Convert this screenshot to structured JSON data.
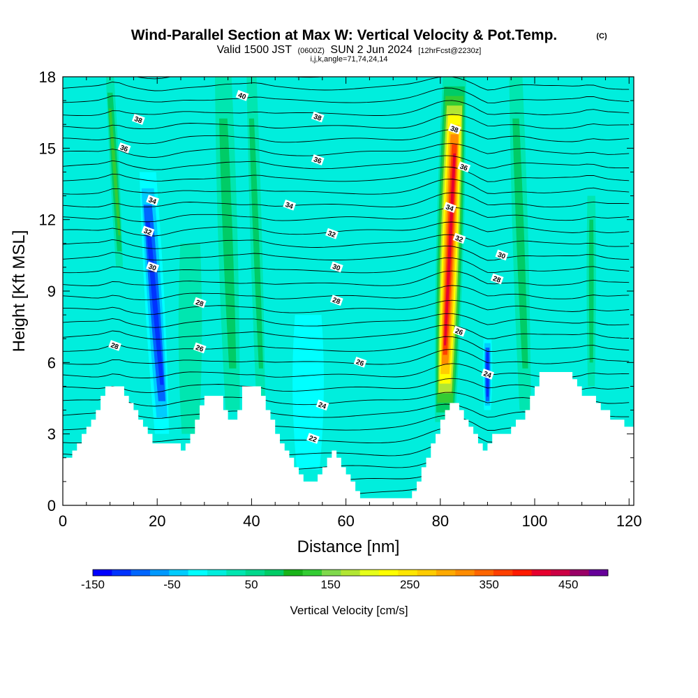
{
  "title": {
    "main": "Wind-Parallel Section at Max W: Vertical Velocity & Pot.Temp.",
    "copyright": "(C)",
    "valid_prefix": "Valid 1500 JST",
    "valid_utc": "(0600Z)",
    "valid_date": "SUN 2 Jun 2024",
    "forecast": "[12hrFcst@2230z]",
    "indices": "i,j,k,angle=71,74,24,14"
  },
  "chart_data": {
    "type": "heatmap",
    "xlabel": "Distance [nm]",
    "ylabel": "Height [Kft MSL]",
    "xlim": [
      0,
      121
    ],
    "ylim": [
      0,
      18
    ],
    "xticks": [
      "0",
      "20",
      "40",
      "60",
      "80",
      "100",
      "120"
    ],
    "yticks": [
      "0",
      "3",
      "6",
      "9",
      "12",
      "15",
      "18"
    ],
    "colorbar": {
      "label": "Vertical Velocity [cm/s]",
      "min": -150,
      "max": 500,
      "step": 25,
      "tick_labels": [
        "-150",
        "-50",
        "50",
        "150",
        "250",
        "350",
        "450"
      ],
      "colors": [
        "#0000ff",
        "#0033ff",
        "#0066ff",
        "#0099ff",
        "#00ccff",
        "#00ffff",
        "#00eedd",
        "#00e6b0",
        "#00d98c",
        "#00cc66",
        "#19b319",
        "#33cc33",
        "#7fd94c",
        "#b2e633",
        "#e6ff1a",
        "#ffff00",
        "#ffe600",
        "#ffcc00",
        "#ffaa00",
        "#ff8c00",
        "#ff6600",
        "#ff4000",
        "#ff1a00",
        "#e6002e",
        "#cc0044",
        "#990066",
        "#660099"
      ]
    },
    "terrain_kft": [
      [
        0,
        2
      ],
      [
        2,
        2.3
      ],
      [
        3,
        2.6
      ],
      [
        4,
        3
      ],
      [
        5,
        3.3
      ],
      [
        6,
        3.6
      ],
      [
        7,
        4
      ],
      [
        8,
        4.6
      ],
      [
        9,
        5
      ],
      [
        12,
        5
      ],
      [
        13,
        4.6
      ],
      [
        14,
        4.3
      ],
      [
        15,
        4
      ],
      [
        16,
        3.6
      ],
      [
        17,
        3.3
      ],
      [
        18,
        3
      ],
      [
        19,
        2.6
      ],
      [
        24,
        2.6
      ],
      [
        25,
        2.3
      ],
      [
        26,
        2.6
      ],
      [
        27,
        3
      ],
      [
        28,
        3.6
      ],
      [
        29,
        4.2
      ],
      [
        30,
        4.6
      ],
      [
        33,
        4.6
      ],
      [
        34,
        4
      ],
      [
        35,
        3.6
      ],
      [
        36,
        3.6
      ],
      [
        37,
        4
      ],
      [
        38,
        5
      ],
      [
        41,
        5
      ],
      [
        42,
        4.6
      ],
      [
        43,
        4
      ],
      [
        44,
        3.6
      ],
      [
        45,
        3
      ],
      [
        46,
        2.6
      ],
      [
        47,
        2.3
      ],
      [
        48,
        2
      ],
      [
        49,
        1.6
      ],
      [
        50,
        1.3
      ],
      [
        51,
        1
      ],
      [
        53,
        1
      ],
      [
        54,
        1.3
      ],
      [
        55,
        1.6
      ],
      [
        56,
        2
      ],
      [
        57,
        2.3
      ],
      [
        58,
        2
      ],
      [
        59,
        1.6
      ],
      [
        60,
        1.3
      ],
      [
        61,
        1
      ],
      [
        62,
        0.6
      ],
      [
        63,
        0.3
      ],
      [
        73,
        0.3
      ],
      [
        74,
        0.6
      ],
      [
        75,
        1
      ],
      [
        76,
        1.6
      ],
      [
        77,
        2
      ],
      [
        78,
        2.6
      ],
      [
        79,
        3
      ],
      [
        80,
        3.6
      ],
      [
        81,
        4
      ],
      [
        82,
        4.3
      ],
      [
        83,
        4.3
      ],
      [
        84,
        4
      ],
      [
        85,
        3.6
      ],
      [
        86,
        3.3
      ],
      [
        87,
        3
      ],
      [
        88,
        2.6
      ],
      [
        89,
        2.3
      ],
      [
        90,
        2.6
      ],
      [
        91,
        3
      ],
      [
        94,
        3
      ],
      [
        95,
        3.3
      ],
      [
        96,
        3.6
      ],
      [
        97,
        3.6
      ],
      [
        98,
        4
      ],
      [
        99,
        4.6
      ],
      [
        100,
        5
      ],
      [
        101,
        5.6
      ],
      [
        107,
        5.6
      ],
      [
        108,
        5.3
      ],
      [
        109,
        5
      ],
      [
        110,
        4.6
      ],
      [
        111,
        4.6
      ],
      [
        112,
        4.6
      ],
      [
        113,
        4.3
      ],
      [
        114,
        4
      ],
      [
        116,
        3.6
      ],
      [
        118,
        3.6
      ],
      [
        119,
        3.3
      ],
      [
        121,
        3.3
      ]
    ],
    "series": [
      {
        "name": "updraft-82nm",
        "x_top": 83,
        "x_bottom": 81,
        "y_from": 3.5,
        "y_to": 18,
        "w": 480,
        "width_nm": 3.5
      },
      {
        "name": "updraft-11nm",
        "x_top": 10,
        "x_bottom": 12,
        "y_from": 10,
        "y_to": 18,
        "w": 160,
        "width_nm": 1.2
      },
      {
        "name": "updraft-36nm",
        "x_top": 34,
        "x_bottom": 36,
        "y_from": 4,
        "y_to": 18,
        "w": 110,
        "width_nm": 2.5
      },
      {
        "name": "updraft-42nm",
        "x_top": 40,
        "x_bottom": 42,
        "y_from": 4,
        "y_to": 18,
        "w": 100,
        "width_nm": 1.5
      },
      {
        "name": "updraft-27nm",
        "x_top": 27,
        "x_bottom": 27,
        "y_from": 3,
        "y_to": 11,
        "w": 80,
        "width_nm": 3
      },
      {
        "name": "updraft-97nm",
        "x_top": 96,
        "x_bottom": 98,
        "y_from": 4,
        "y_to": 18,
        "w": 100,
        "width_nm": 2
      },
      {
        "name": "updraft-112nm",
        "x_top": 112,
        "x_bottom": 112,
        "y_from": 5,
        "y_to": 13,
        "w": 110,
        "width_nm": 1.2
      },
      {
        "name": "downdraft-20nm",
        "x_top": 18,
        "x_bottom": 21,
        "y_from": 3,
        "y_to": 14,
        "w": -120,
        "width_nm": 2.5
      },
      {
        "name": "downdraft-90nm",
        "x_top": 90,
        "x_bottom": 90,
        "y_from": 4,
        "y_to": 7,
        "w": -130,
        "width_nm": 1.2
      },
      {
        "name": "downdraft-52nm",
        "x_top": 52,
        "x_bottom": 52,
        "y_from": 1.5,
        "y_to": 8,
        "w": -40,
        "width_nm": 4
      }
    ],
    "contour_labels": [
      {
        "text": "40",
        "x": 38,
        "y": 17.2
      },
      {
        "text": "38",
        "x": 16,
        "y": 16.2
      },
      {
        "text": "38",
        "x": 54,
        "y": 16.3
      },
      {
        "text": "38",
        "x": 83,
        "y": 15.8
      },
      {
        "text": "36",
        "x": 13,
        "y": 15
      },
      {
        "text": "36",
        "x": 54,
        "y": 14.5
      },
      {
        "text": "36",
        "x": 85,
        "y": 14.2
      },
      {
        "text": "34",
        "x": 19,
        "y": 12.8
      },
      {
        "text": "34",
        "x": 48,
        "y": 12.6
      },
      {
        "text": "34",
        "x": 82,
        "y": 12.5
      },
      {
        "text": "32",
        "x": 18,
        "y": 11.5
      },
      {
        "text": "32",
        "x": 57,
        "y": 11.4
      },
      {
        "text": "32",
        "x": 84,
        "y": 11.2
      },
      {
        "text": "30",
        "x": 19,
        "y": 10
      },
      {
        "text": "30",
        "x": 58,
        "y": 10
      },
      {
        "text": "30",
        "x": 93,
        "y": 10.5
      },
      {
        "text": "28",
        "x": 29,
        "y": 8.5
      },
      {
        "text": "28",
        "x": 58,
        "y": 8.6
      },
      {
        "text": "28",
        "x": 92,
        "y": 9.5
      },
      {
        "text": "28",
        "x": 11,
        "y": 6.7
      },
      {
        "text": "26",
        "x": 29,
        "y": 6.6
      },
      {
        "text": "26",
        "x": 63,
        "y": 6
      },
      {
        "text": "26",
        "x": 84,
        "y": 7.3
      },
      {
        "text": "24",
        "x": 55,
        "y": 4.2
      },
      {
        "text": "24",
        "x": 90,
        "y": 5.5
      },
      {
        "text": "22",
        "x": 53,
        "y": 2.8
      }
    ]
  }
}
